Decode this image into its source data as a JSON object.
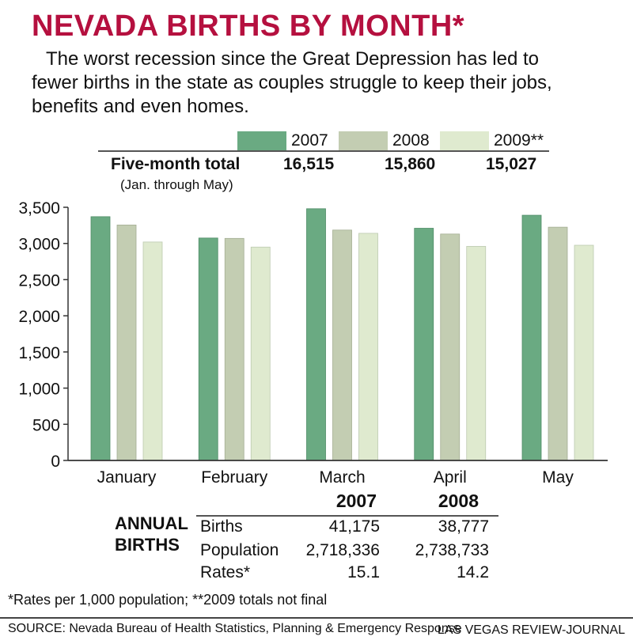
{
  "title": "NEVADA BIRTHS BY MONTH*",
  "subtitle": "The worst recession since the Great Depression has led to fewer births in the state as couples struggle to keep their jobs, benefits and even homes.",
  "colors": {
    "title": "#b5103f",
    "s2007": "#6aaa82",
    "s2008": "#c3cdb2",
    "s2009": "#dfeacf"
  },
  "legend": [
    "2007",
    "2008",
    "2009**"
  ],
  "five_month": {
    "label": "Five-month total",
    "sub": "(Jan. through May)",
    "values": [
      "16,515",
      "15,860",
      "15,027"
    ]
  },
  "chart_data": {
    "type": "bar",
    "categories": [
      "January",
      "February",
      "March",
      "April",
      "May"
    ],
    "series": [
      {
        "name": "2007",
        "values": [
          3370,
          3075,
          3480,
          3210,
          3390
        ]
      },
      {
        "name": "2008",
        "values": [
          3255,
          3070,
          3185,
          3130,
          3225
        ]
      },
      {
        "name": "2009**",
        "values": [
          3020,
          2950,
          3140,
          2960,
          2975
        ]
      }
    ],
    "yticks": [
      "0",
      "500",
      "1,000",
      "1,500",
      "2,000",
      "2,500",
      "3,000",
      "3,500"
    ],
    "ylim": [
      0,
      3500
    ],
    "grid": false
  },
  "annual": {
    "title_line1": "ANNUAL",
    "title_line2": "BIRTHS",
    "col_2007": "2007",
    "col_2008": "2008",
    "rows": [
      {
        "label": "Births",
        "v2007": "41,175",
        "v2008": "38,777"
      },
      {
        "label": "Population",
        "v2007": "2,718,336",
        "v2008": "2,738,733"
      },
      {
        "label": "Rates*",
        "v2007": "15.1",
        "v2008": "14.2"
      }
    ]
  },
  "footnote": "*Rates per 1,000 population; **2009 totals not final",
  "source": "SOURCE: Nevada Bureau of Health Statistics, Planning & Emergency Response",
  "credit": "LAS VEGAS REVIEW-JOURNAL"
}
